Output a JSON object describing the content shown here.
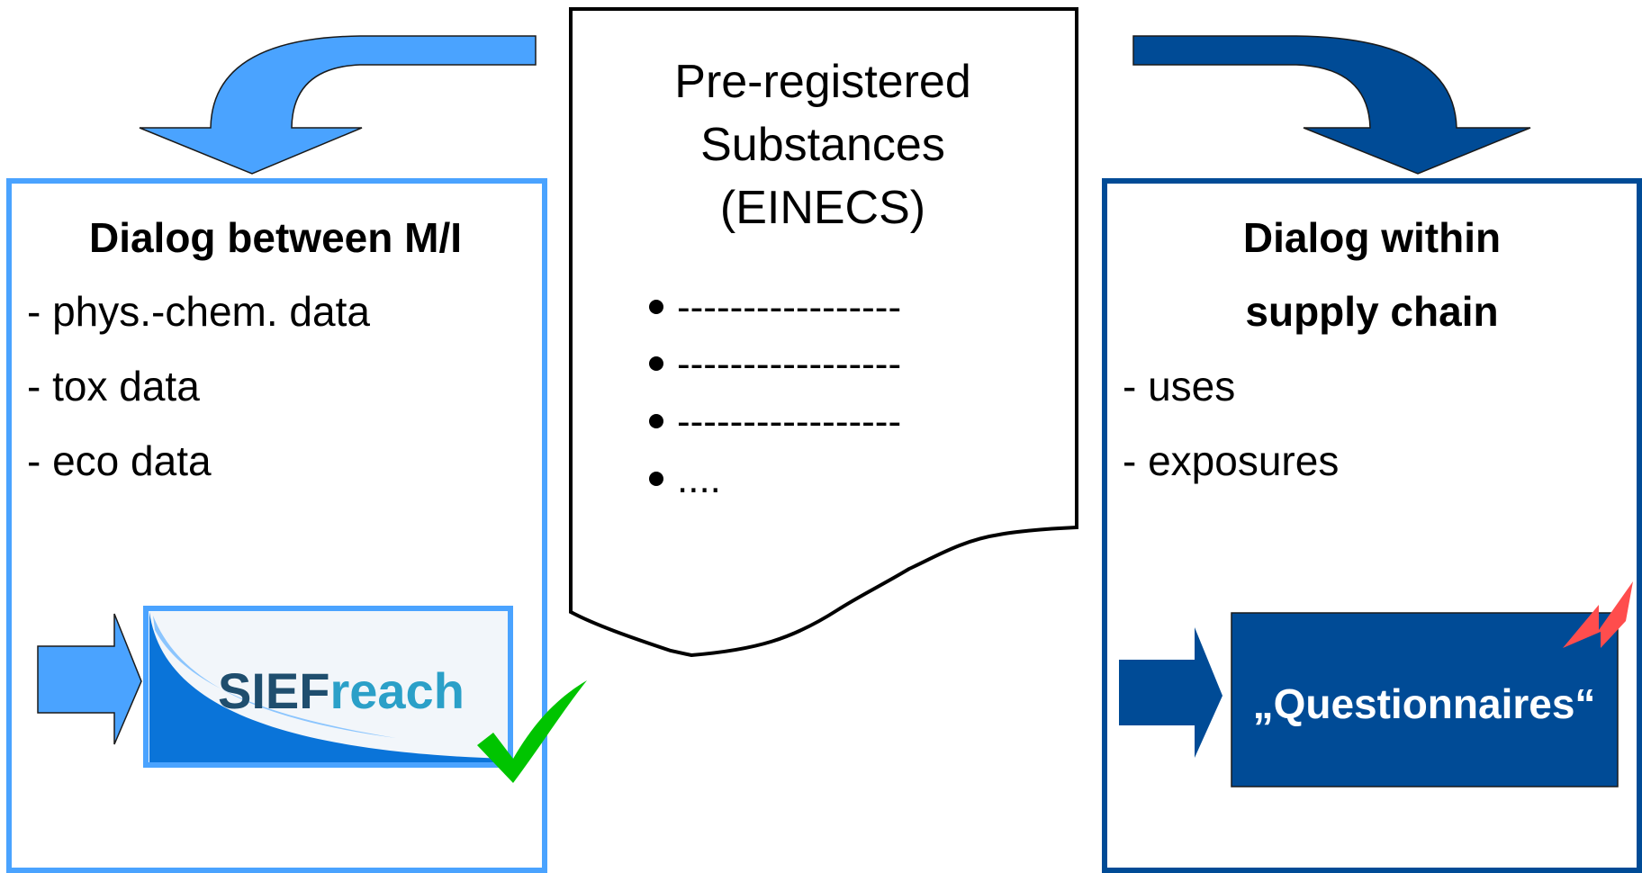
{
  "center_document": {
    "title_lines": [
      "Pre-registered",
      "Substances",
      "(EINECS)"
    ],
    "bullets": [
      "-----------------",
      "-----------------",
      "-----------------",
      "...."
    ]
  },
  "left_box": {
    "title": "Dialog between M/I",
    "items": [
      "- phys.-chem. data",
      "- tox data",
      "- eco data"
    ],
    "logo": "SIEFreach",
    "logo_parts": [
      "SIEF",
      "reach"
    ]
  },
  "right_box": {
    "title_lines": [
      "Dialog within",
      "supply chain"
    ],
    "items": [
      "- uses",
      "- exposures"
    ],
    "questionnaire_label": "„Questionnaires“"
  },
  "colors": {
    "light_blue": "#4aa3ff",
    "dark_blue": "#004b96",
    "check_green": "#00c400",
    "warning_red": "#ff4d4d"
  },
  "icons": {
    "check": "check-icon",
    "warning": "lightning-icon"
  }
}
